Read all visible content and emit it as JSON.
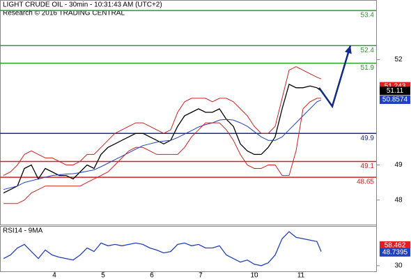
{
  "chart_data": [
    {
      "type": "line",
      "title": "LIGHT CRUDE OIL - 30min - 10:31:43 AM (UTC+2)",
      "subtitle": "Research © 2016 TRADING CENTRAL",
      "x": [
        0,
        1,
        2,
        3,
        4,
        5,
        6,
        7,
        8,
        9,
        10,
        11,
        12,
        13,
        14,
        15,
        16,
        17,
        18,
        19,
        20,
        21,
        22,
        23,
        24,
        25,
        26,
        27,
        28,
        29,
        30,
        31,
        32,
        33,
        34,
        35,
        36,
        37,
        38,
        39,
        40,
        41,
        42,
        43,
        44,
        45,
        45.6
      ],
      "xlim": [
        -0.5,
        53.5
      ],
      "xticks": [
        {
          "value": 7.3,
          "label": "4"
        },
        {
          "value": 14.3,
          "label": "5"
        },
        {
          "value": 21.3,
          "label": "6"
        },
        {
          "value": 28.3,
          "label": "7"
        },
        {
          "value": 36,
          "label": "10"
        },
        {
          "value": 42.7,
          "label": "11"
        }
      ],
      "ylim": [
        47.3,
        53.7
      ],
      "yticks": [
        52,
        49,
        48
      ],
      "series": [
        {
          "color": "#000000",
          "values": [
            48.2,
            48.3,
            48.4,
            48.9,
            49.0,
            48.6,
            48.9,
            48.8,
            48.7,
            48.7,
            48.6,
            48.8,
            49.0,
            48.9,
            49.3,
            49.5,
            49.6,
            49.7,
            49.8,
            49.9,
            49.9,
            49.8,
            49.7,
            49.6,
            49.7,
            50.1,
            50.4,
            50.5,
            50.6,
            50.5,
            50.5,
            50.6,
            50.3,
            50.1,
            49.6,
            49.4,
            49.3,
            49.3,
            49.5,
            49.8,
            50.6,
            51.3,
            51.2,
            51.2,
            51.25,
            51.2,
            51.11
          ]
        },
        {
          "color": "#2040c0",
          "values": [
            48.3,
            48.35,
            48.4,
            48.5,
            48.55,
            48.6,
            48.65,
            48.7,
            48.72,
            48.74,
            48.75,
            48.78,
            48.82,
            48.86,
            48.95,
            49.05,
            49.15,
            49.25,
            49.35,
            49.45,
            49.55,
            49.6,
            49.65,
            49.68,
            49.7,
            49.78,
            49.88,
            49.98,
            50.08,
            50.15,
            50.2,
            50.28,
            50.3,
            50.28,
            50.2,
            50.1,
            49.95,
            49.8,
            49.7,
            49.7,
            49.8,
            50.0,
            50.2,
            50.4,
            50.6,
            50.8,
            50.85
          ]
        },
        {
          "color": "#d02020",
          "values": [
            48.7,
            48.8,
            49.0,
            49.3,
            49.4,
            49.3,
            49.2,
            49.2,
            49.1,
            49.0,
            49.0,
            49.1,
            49.3,
            49.3,
            49.5,
            49.7,
            49.9,
            50.0,
            50.1,
            50.2,
            50.2,
            50.1,
            50.0,
            49.9,
            50.0,
            50.5,
            50.8,
            50.9,
            50.9,
            50.9,
            50.8,
            50.9,
            50.9,
            50.8,
            50.6,
            50.4,
            50.1,
            49.9,
            49.9,
            50.1,
            50.9,
            51.7,
            51.8,
            51.7,
            51.6,
            51.5,
            51.45
          ]
        },
        {
          "color": "#d02020",
          "values": [
            47.9,
            47.9,
            47.9,
            48.0,
            48.2,
            48.3,
            48.4,
            48.4,
            48.4,
            48.4,
            48.4,
            48.4,
            48.5,
            48.6,
            48.7,
            48.8,
            49.0,
            49.2,
            49.4,
            49.5,
            49.5,
            49.4,
            49.3,
            49.3,
            49.3,
            49.3,
            49.5,
            49.8,
            50.0,
            50.2,
            50.2,
            50.2,
            50.0,
            49.7,
            49.3,
            49.0,
            48.9,
            48.9,
            49.0,
            49.0,
            48.7,
            48.7,
            49.4,
            50.6,
            50.8,
            50.9,
            50.9
          ]
        }
      ],
      "forecast": {
        "color": "#102a8a",
        "x": [
          45.3,
          47.2,
          49.8
        ],
        "values": [
          51.2,
          50.67,
          52.4
        ]
      },
      "levels": [
        {
          "value": 53.4,
          "color": "#2a9a2a"
        },
        {
          "value": 52.4,
          "color": "#2a9a2a"
        },
        {
          "value": 51.9,
          "color": "#2a9a2a"
        },
        {
          "value": 49.9,
          "color": "#1a2aa0"
        },
        {
          "value": 49.1,
          "color": "#d02020"
        },
        {
          "value": 48.65,
          "color": "#d02020"
        }
      ],
      "price_labels": [
        {
          "value": 51.243,
          "color": "#e02020"
        },
        {
          "value": 51.11,
          "color": "#000000"
        },
        {
          "value": 50.8574,
          "color": "#2040c0"
        }
      ]
    },
    {
      "type": "line",
      "title": "RSI14 - 9MA",
      "ylim": [
        22,
        86
      ],
      "yticks": [
        30
      ],
      "series": [
        {
          "color": "#2040c0",
          "values": [
            40,
            45,
            55,
            60,
            50,
            40,
            52,
            45,
            42,
            40,
            38,
            45,
            55,
            50,
            62,
            58,
            60,
            58,
            60,
            62,
            60,
            55,
            52,
            48,
            50,
            60,
            62,
            58,
            60,
            55,
            55,
            58,
            45,
            40,
            35,
            38,
            32,
            30,
            34,
            45,
            68,
            78,
            70,
            68,
            66,
            64,
            50
          ]
        }
      ],
      "price_labels": [
        {
          "value": 58.462,
          "color": "#e02020"
        },
        {
          "value": 48.7395,
          "color": "#2040c0"
        }
      ]
    }
  ]
}
